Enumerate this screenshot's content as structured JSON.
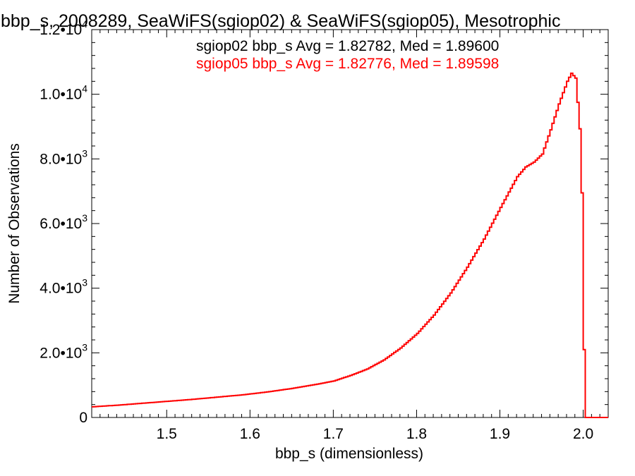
{
  "chart_data": {
    "type": "line",
    "title": "bbp_s, 2008289, SeaWiFS(sgiop02) & SeaWiFS(sgiop05), Mesotrophic",
    "xlabel": "bbp_s (dimensionless)",
    "ylabel": "Number of Observations",
    "xlim": [
      1.41,
      2.03
    ],
    "ylim": [
      0,
      12000
    ],
    "x_ticks": [
      {
        "value": 1.5,
        "label": "1.5"
      },
      {
        "value": 1.6,
        "label": "1.6"
      },
      {
        "value": 1.7,
        "label": "1.7"
      },
      {
        "value": 1.8,
        "label": "1.8"
      },
      {
        "value": 1.9,
        "label": "1.9"
      },
      {
        "value": 2.0,
        "label": "2.0"
      }
    ],
    "y_ticks": [
      {
        "value": 0,
        "mantissa": "0",
        "exponent": ""
      },
      {
        "value": 2000,
        "mantissa": "2.0•10",
        "exponent": "3"
      },
      {
        "value": 4000,
        "mantissa": "4.0•10",
        "exponent": "3"
      },
      {
        "value": 6000,
        "mantissa": "6.0•10",
        "exponent": "3"
      },
      {
        "value": 8000,
        "mantissa": "8.0•10",
        "exponent": "3"
      },
      {
        "value": 10000,
        "mantissa": "1.0•10",
        "exponent": "4"
      },
      {
        "value": 12000,
        "mantissa": "1.2•10",
        "exponent": "4"
      }
    ],
    "grid": false,
    "legend": [
      {
        "text": "sgiop02 bbp_s Avg = 1.82782, Med = 1.89600",
        "color": "#000000"
      },
      {
        "text": "sgiop05 bbp_s Avg = 1.82776, Med = 1.89598",
        "color": "#ff0000"
      }
    ],
    "series": [
      {
        "color": "#ff0000",
        "x": [
          1.41,
          1.44,
          1.47,
          1.5,
          1.53,
          1.56,
          1.59,
          1.62,
          1.65,
          1.68,
          1.7,
          1.72,
          1.74,
          1.76,
          1.78,
          1.8,
          1.82,
          1.84,
          1.86,
          1.88,
          1.9,
          1.92,
          1.93,
          1.94,
          1.95,
          1.96,
          1.97,
          1.98,
          1.985,
          1.99,
          1.993,
          1.996,
          1.998,
          2.0,
          2.002,
          2.005,
          2.03
        ],
        "y": [
          330,
          380,
          440,
          500,
          560,
          630,
          700,
          790,
          900,
          1030,
          1130,
          1300,
          1500,
          1780,
          2150,
          2600,
          3170,
          3850,
          4650,
          5520,
          6500,
          7450,
          7750,
          7900,
          8150,
          8900,
          9700,
          10400,
          10650,
          10500,
          9600,
          8600,
          6400,
          2100,
          0,
          0,
          0
        ]
      }
    ]
  }
}
